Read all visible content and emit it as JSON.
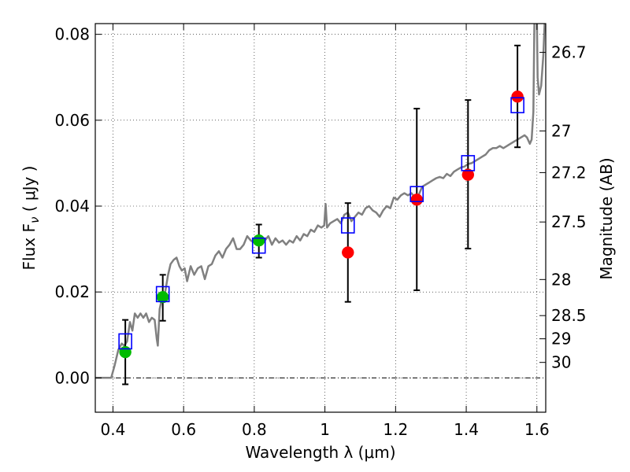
{
  "chart_data": {
    "type": "scatter",
    "xlabel": "Wavelength  λ (μm)",
    "ylabel": "Flux  F",
    "ylabel_sub": "ν",
    "ylabel_units": "  ( μJy )",
    "ylabel_right": "Magnitude (AB)",
    "xlim": [
      0.35,
      1.625
    ],
    "ylim": [
      -0.008,
      0.0825
    ],
    "grid": true,
    "x_ticks": [
      0.4,
      0.6,
      0.8,
      1.0,
      1.2,
      1.4,
      1.6
    ],
    "x_tick_labels": [
      "0.4",
      "0.6",
      "0.8",
      "1",
      "1.2",
      "1.4",
      "1.6"
    ],
    "y_ticks": [
      0.0,
      0.02,
      0.04,
      0.06,
      0.08
    ],
    "y_tick_labels": [
      "0.00",
      "0.02",
      "0.04",
      "0.06",
      "0.08"
    ],
    "right_ticks": [
      {
        "label": "26.7",
        "flux": 0.0758
      },
      {
        "label": "27",
        "flux": 0.0575
      },
      {
        "label": "27.2",
        "flux": 0.0478
      },
      {
        "label": "27.5",
        "flux": 0.0363
      },
      {
        "label": "28",
        "flux": 0.0229
      },
      {
        "label": "28.5",
        "flux": 0.0145
      },
      {
        "label": "29",
        "flux": 0.0091
      },
      {
        "label": "30",
        "flux": 0.0036
      }
    ],
    "series": [
      {
        "marker": "circle",
        "color": "#00bb00",
        "points": [
          {
            "x": 0.435,
            "y": 0.006,
            "lo": -0.0015,
            "hi": 0.0135
          },
          {
            "x": 0.541,
            "y": 0.0188,
            "lo": 0.0133,
            "hi": 0.024
          },
          {
            "x": 0.813,
            "y": 0.032,
            "lo": 0.028,
            "hi": 0.0357
          }
        ]
      },
      {
        "marker": "circle",
        "color": "#ff0000",
        "points": [
          {
            "x": 1.065,
            "y": 0.0292,
            "lo": 0.0177,
            "hi": 0.0407
          },
          {
            "x": 1.26,
            "y": 0.0415,
            "lo": 0.0204,
            "hi": 0.0627
          },
          {
            "x": 1.405,
            "y": 0.0473,
            "lo": 0.0301,
            "hi": 0.0647
          },
          {
            "x": 1.545,
            "y": 0.0655,
            "lo": 0.0537,
            "hi": 0.0774
          }
        ]
      },
      {
        "marker": "square",
        "color": "#0000ff",
        "points": [
          {
            "x": 0.435,
            "y": 0.0085
          },
          {
            "x": 0.541,
            "y": 0.0195
          },
          {
            "x": 0.813,
            "y": 0.0308
          },
          {
            "x": 1.065,
            "y": 0.0355
          },
          {
            "x": 1.26,
            "y": 0.0428
          },
          {
            "x": 1.405,
            "y": 0.05
          },
          {
            "x": 1.545,
            "y": 0.0635
          }
        ]
      }
    ],
    "spectrum": {
      "color": "#808080",
      "points": [
        [
          0.35,
          0.0
        ],
        [
          0.38,
          0.0
        ],
        [
          0.395,
          0.0
        ],
        [
          0.405,
          0.003
        ],
        [
          0.415,
          0.0065
        ],
        [
          0.425,
          0.008
        ],
        [
          0.432,
          0.0075
        ],
        [
          0.44,
          0.0085
        ],
        [
          0.448,
          0.013
        ],
        [
          0.455,
          0.011
        ],
        [
          0.462,
          0.015
        ],
        [
          0.47,
          0.014
        ],
        [
          0.478,
          0.015
        ],
        [
          0.486,
          0.014
        ],
        [
          0.494,
          0.015
        ],
        [
          0.502,
          0.013
        ],
        [
          0.51,
          0.014
        ],
        [
          0.518,
          0.0135
        ],
        [
          0.524,
          0.009
        ],
        [
          0.527,
          0.0075
        ],
        [
          0.532,
          0.016
        ],
        [
          0.54,
          0.019
        ],
        [
          0.548,
          0.02
        ],
        [
          0.556,
          0.024
        ],
        [
          0.563,
          0.0265
        ],
        [
          0.572,
          0.0275
        ],
        [
          0.58,
          0.028
        ],
        [
          0.588,
          0.026
        ],
        [
          0.595,
          0.025
        ],
        [
          0.603,
          0.0255
        ],
        [
          0.61,
          0.0225
        ],
        [
          0.62,
          0.026
        ],
        [
          0.63,
          0.024
        ],
        [
          0.64,
          0.0255
        ],
        [
          0.65,
          0.026
        ],
        [
          0.66,
          0.023
        ],
        [
          0.67,
          0.026
        ],
        [
          0.68,
          0.0265
        ],
        [
          0.69,
          0.0285
        ],
        [
          0.7,
          0.0295
        ],
        [
          0.71,
          0.028
        ],
        [
          0.72,
          0.03
        ],
        [
          0.73,
          0.031
        ],
        [
          0.74,
          0.0325
        ],
        [
          0.75,
          0.03
        ],
        [
          0.76,
          0.03
        ],
        [
          0.77,
          0.031
        ],
        [
          0.78,
          0.033
        ],
        [
          0.79,
          0.032
        ],
        [
          0.8,
          0.0315
        ],
        [
          0.81,
          0.0325
        ],
        [
          0.82,
          0.031
        ],
        [
          0.83,
          0.032
        ],
        [
          0.84,
          0.033
        ],
        [
          0.85,
          0.031
        ],
        [
          0.86,
          0.0325
        ],
        [
          0.87,
          0.0315
        ],
        [
          0.88,
          0.032
        ],
        [
          0.89,
          0.031
        ],
        [
          0.9,
          0.032
        ],
        [
          0.91,
          0.0315
        ],
        [
          0.92,
          0.033
        ],
        [
          0.93,
          0.032
        ],
        [
          0.94,
          0.0335
        ],
        [
          0.95,
          0.033
        ],
        [
          0.96,
          0.0345
        ],
        [
          0.97,
          0.034
        ],
        [
          0.98,
          0.0355
        ],
        [
          0.99,
          0.035
        ],
        [
          0.998,
          0.0355
        ],
        [
          1.002,
          0.0405
        ],
        [
          1.006,
          0.035
        ],
        [
          1.015,
          0.036
        ],
        [
          1.025,
          0.0365
        ],
        [
          1.035,
          0.037
        ],
        [
          1.045,
          0.036
        ],
        [
          1.055,
          0.038
        ],
        [
          1.065,
          0.0385
        ],
        [
          1.075,
          0.0365
        ],
        [
          1.085,
          0.0375
        ],
        [
          1.095,
          0.0385
        ],
        [
          1.105,
          0.038
        ],
        [
          1.115,
          0.0395
        ],
        [
          1.125,
          0.04
        ],
        [
          1.135,
          0.039
        ],
        [
          1.145,
          0.0385
        ],
        [
          1.155,
          0.0375
        ],
        [
          1.165,
          0.039
        ],
        [
          1.175,
          0.04
        ],
        [
          1.185,
          0.0395
        ],
        [
          1.195,
          0.042
        ],
        [
          1.205,
          0.0415
        ],
        [
          1.215,
          0.0425
        ],
        [
          1.225,
          0.043
        ],
        [
          1.235,
          0.0425
        ],
        [
          1.245,
          0.043
        ],
        [
          1.255,
          0.042
        ],
        [
          1.265,
          0.0425
        ],
        [
          1.275,
          0.0445
        ],
        [
          1.285,
          0.045
        ],
        [
          1.295,
          0.0455
        ],
        [
          1.305,
          0.046
        ],
        [
          1.315,
          0.0465
        ],
        [
          1.325,
          0.0468
        ],
        [
          1.335,
          0.0465
        ],
        [
          1.345,
          0.0475
        ],
        [
          1.355,
          0.047
        ],
        [
          1.365,
          0.048
        ],
        [
          1.375,
          0.0485
        ],
        [
          1.385,
          0.049
        ],
        [
          1.395,
          0.0492
        ],
        [
          1.405,
          0.0498
        ],
        [
          1.415,
          0.05
        ],
        [
          1.425,
          0.0505
        ],
        [
          1.435,
          0.051
        ],
        [
          1.445,
          0.0515
        ],
        [
          1.455,
          0.052
        ],
        [
          1.465,
          0.053
        ],
        [
          1.475,
          0.0535
        ],
        [
          1.485,
          0.0535
        ],
        [
          1.495,
          0.054
        ],
        [
          1.505,
          0.0535
        ],
        [
          1.515,
          0.054
        ],
        [
          1.525,
          0.0545
        ],
        [
          1.535,
          0.055
        ],
        [
          1.545,
          0.0555
        ],
        [
          1.555,
          0.056
        ],
        [
          1.565,
          0.0565
        ],
        [
          1.572,
          0.056
        ],
        [
          1.58,
          0.0545
        ],
        [
          1.585,
          0.0555
        ],
        [
          1.59,
          0.062
        ],
        [
          1.593,
          0.083
        ],
        [
          1.6,
          0.083
        ],
        [
          1.602,
          0.07
        ],
        [
          1.606,
          0.066
        ],
        [
          1.612,
          0.068
        ],
        [
          1.618,
          0.075
        ],
        [
          1.622,
          0.083
        ]
      ]
    }
  }
}
